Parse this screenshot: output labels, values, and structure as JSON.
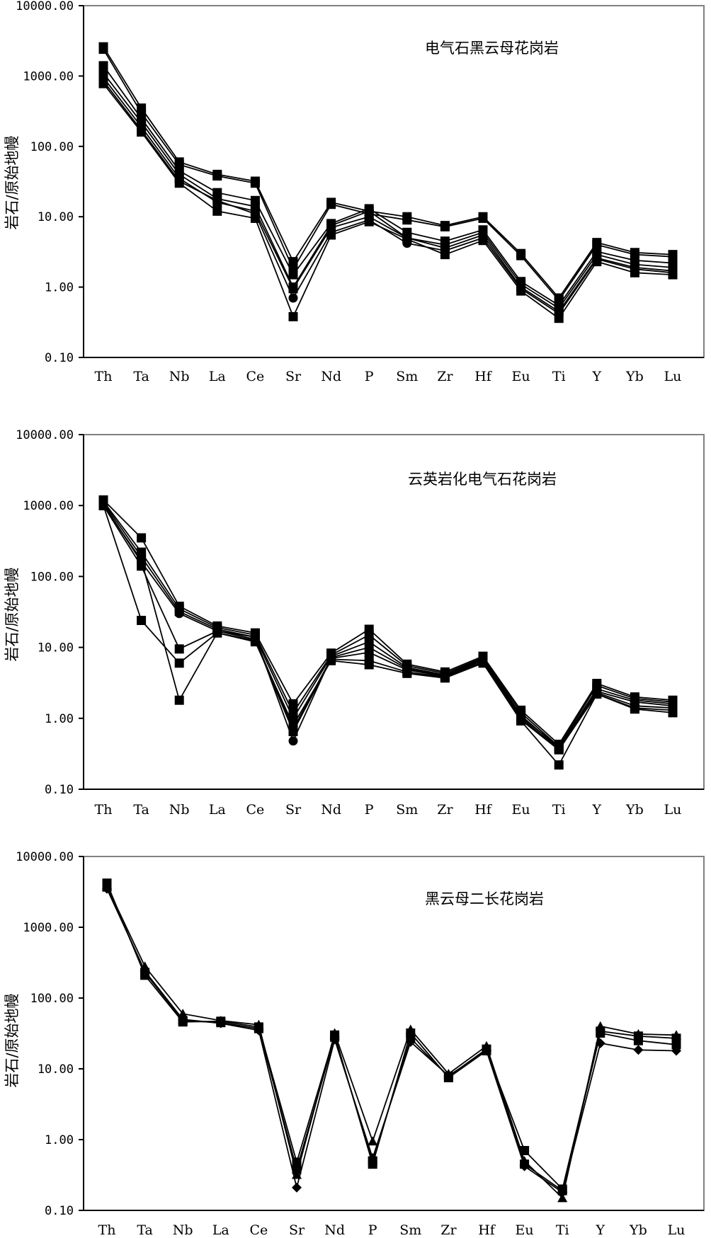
{
  "chart_data": [
    {
      "type": "line",
      "title": "电气石黑云母花岗岩",
      "ylabel": "岩石/原始地幔",
      "xlabel": "",
      "yscale": "log",
      "ylim": [
        0.1,
        10000
      ],
      "yticks": [
        "10000.00",
        "1000.00",
        "100.00",
        "10.00",
        "1.00",
        "0.10"
      ],
      "categories": [
        "Th",
        "Ta",
        "Nb",
        "La",
        "Ce",
        "Sr",
        "Nd",
        "P",
        "Sm",
        "Zr",
        "Hf",
        "Eu",
        "Ti",
        "Y",
        "Yb",
        "Lu"
      ],
      "grid": false,
      "legend": "none",
      "series": [
        {
          "marker": "square",
          "values": [
            2600,
            350,
            60,
            40,
            32,
            2.3,
            16,
            12,
            10,
            7.5,
            10,
            3.0,
            0.7,
            4.3,
            3.1,
            2.9
          ]
        },
        {
          "marker": "square",
          "values": [
            2400,
            300,
            55,
            38,
            30,
            1.8,
            15,
            11,
            9,
            7.2,
            9.5,
            2.8,
            0.65,
            4.0,
            2.9,
            2.7
          ]
        },
        {
          "marker": "square",
          "values": [
            1400,
            250,
            45,
            22,
            17,
            1.5,
            8,
            13,
            6,
            4.5,
            6.5,
            1.2,
            0.55,
            3.2,
            2.4,
            2.2
          ]
        },
        {
          "marker": "square",
          "values": [
            1100,
            220,
            40,
            18,
            14,
            1.0,
            7.5,
            12,
            5,
            4.0,
            6,
            1.1,
            0.5,
            2.9,
            2.1,
            1.9
          ]
        },
        {
          "marker": "square",
          "values": [
            950,
            190,
            35,
            16,
            12,
            0.95,
            7,
            10,
            5,
            3.6,
            5.5,
            1.0,
            0.45,
            2.6,
            1.9,
            1.7
          ]
        },
        {
          "marker": "circle",
          "values": [
            850,
            170,
            32,
            17,
            11,
            0.7,
            6,
            9,
            4.2,
            3.3,
            5,
            0.95,
            0.42,
            2.5,
            1.8,
            1.6
          ]
        },
        {
          "marker": "square",
          "values": [
            780,
            160,
            30,
            12,
            9.5,
            0.38,
            5.5,
            8.5,
            4.8,
            2.9,
            4.6,
            0.88,
            0.36,
            2.3,
            1.6,
            1.5
          ]
        }
      ]
    },
    {
      "type": "line",
      "title": "云英岩化电气石花岗岩",
      "ylabel": "岩石/原始地幔",
      "xlabel": "",
      "yscale": "log",
      "ylim": [
        0.1,
        10000
      ],
      "yticks": [
        "10000.00",
        "1000.00",
        "100.00",
        "10.00",
        "1.00",
        "0.10"
      ],
      "categories": [
        "Th",
        "Ta",
        "Nb",
        "La",
        "Ce",
        "Sr",
        "Nd",
        "P",
        "Sm",
        "Zr",
        "Hf",
        "Eu",
        "Ti",
        "Y",
        "Yb",
        "Lu"
      ],
      "grid": false,
      "legend": "none",
      "series": [
        {
          "marker": "square",
          "values": [
            1200,
            350,
            38,
            20,
            16,
            1.6,
            8.3,
            18,
            5.8,
            4.5,
            7.5,
            1.3,
            0.43,
            3.1,
            2.0,
            1.8
          ]
        },
        {
          "marker": "square",
          "values": [
            1150,
            220,
            35,
            19,
            15,
            1.2,
            7.8,
            15,
            5.5,
            4.3,
            7.2,
            1.2,
            0.4,
            2.9,
            1.9,
            1.7
          ]
        },
        {
          "marker": "square",
          "values": [
            1100,
            190,
            32,
            18,
            14,
            1.0,
            7.5,
            12,
            5.2,
            4.1,
            7,
            1.1,
            0.38,
            2.6,
            1.8,
            1.6
          ]
        },
        {
          "marker": "circle",
          "values": [
            1050,
            160,
            30,
            17,
            14,
            0.48,
            7.2,
            10,
            5.0,
            4.0,
            6.8,
            1.05,
            0.4,
            2.4,
            1.7,
            1.5
          ]
        },
        {
          "marker": "square",
          "values": [
            1000,
            140,
            9.5,
            17,
            13,
            0.7,
            7.0,
            8.5,
            4.8,
            3.9,
            6.5,
            1.0,
            0.37,
            2.3,
            1.5,
            1.4
          ]
        },
        {
          "marker": "square",
          "values": [
            1000,
            24,
            6.0,
            16,
            12.5,
            0.65,
            6.8,
            6.5,
            4.5,
            3.8,
            6.2,
            0.95,
            0.36,
            2.2,
            1.4,
            1.3
          ]
        },
        {
          "marker": "square",
          "values": [
            1000,
            170,
            1.8,
            16,
            12,
            0.8,
            6.5,
            5.7,
            4.3,
            3.7,
            6.0,
            0.92,
            0.22,
            2.2,
            1.35,
            1.2
          ]
        }
      ]
    },
    {
      "type": "line",
      "title": "黑云母二长花岗岩",
      "ylabel": "岩石/原始地幔",
      "xlabel": "",
      "yscale": "log",
      "ylim": [
        0.1,
        10000
      ],
      "yticks": [
        "10000.00",
        "1000.00",
        "100.00",
        "10.00",
        "1.00",
        "0.10"
      ],
      "categories": [
        "Th",
        "Ta",
        "Nb",
        "La",
        "Ce",
        "Sr",
        "Nd",
        "P",
        "Sm",
        "Zr",
        "Hf",
        "Eu",
        "Ti",
        "Y",
        "Yb",
        "Lu"
      ],
      "grid": false,
      "legend": "none",
      "series": [
        {
          "marker": "square",
          "values": [
            4200,
            210,
            46,
            47,
            39,
            0.48,
            30,
            0.45,
            32,
            7.5,
            18,
            0.7,
            0.2,
            34,
            29,
            27
          ]
        },
        {
          "marker": "triangle",
          "values": [
            3800,
            280,
            60,
            48,
            42,
            0.32,
            32,
            0.95,
            36,
            8.5,
            21,
            0.5,
            0.15,
            40,
            31,
            30
          ]
        },
        {
          "marker": "diamond",
          "values": [
            3500,
            240,
            50,
            44,
            35,
            0.21,
            26,
            0.55,
            24,
            8,
            18,
            0.42,
            0.18,
            23,
            18.5,
            18
          ]
        },
        {
          "marker": "square",
          "values": [
            3700,
            230,
            48,
            45,
            37,
            0.38,
            28,
            0.5,
            27,
            7.8,
            19,
            0.45,
            0.19,
            32,
            25,
            22
          ]
        }
      ]
    }
  ]
}
